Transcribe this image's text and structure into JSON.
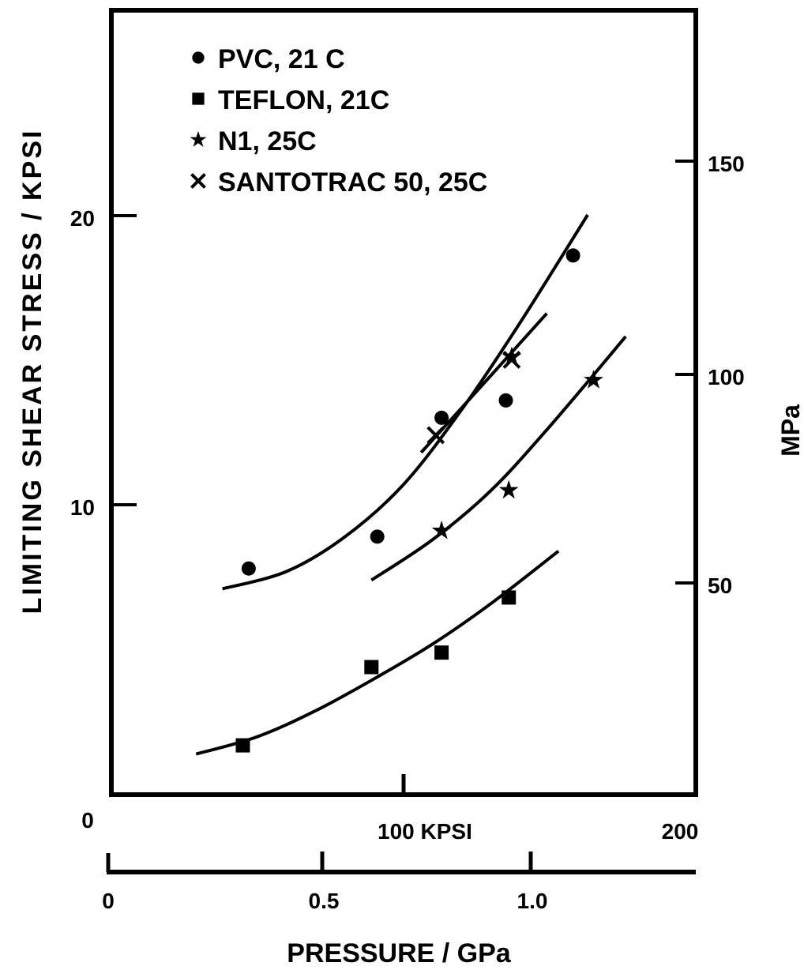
{
  "chart_data": {
    "type": "scatter",
    "title": "",
    "ylabel": "LIMITING SHEAR STRESS / KPSI",
    "ylabel_right": "MPa",
    "xlabel": "PRESSURE / GPa",
    "x_top_unit_label": "100 KPSI",
    "xlim_kpsi": [
      0,
      200
    ],
    "ylim_kpsi": [
      0,
      25
    ],
    "x_top_ticks": [
      "0",
      "200"
    ],
    "y_left_ticks": [
      "10",
      "20"
    ],
    "y_right_ticks": [
      "50",
      "100",
      "150"
    ],
    "x_gpa_ticks": [
      "0",
      "0.5",
      "1.0"
    ],
    "legend_position": "top-left",
    "series": [
      {
        "name": "PVC, 21 C",
        "marker": "circle",
        "points": [
          [
            47,
            7.8
          ],
          [
            91,
            8.9
          ],
          [
            113,
            13.0
          ],
          [
            135,
            13.6
          ],
          [
            158,
            18.6
          ]
        ],
        "curve": [
          [
            38,
            7.1
          ],
          [
            60,
            7.7
          ],
          [
            80,
            8.9
          ],
          [
            100,
            10.7
          ],
          [
            120,
            13.3
          ],
          [
            140,
            16.3
          ],
          [
            163,
            20.0
          ]
        ]
      },
      {
        "name": "TEFLON, 21C",
        "marker": "square",
        "points": [
          [
            45,
            1.7
          ],
          [
            89,
            4.4
          ],
          [
            113,
            4.9
          ],
          [
            136,
            6.8
          ]
        ],
        "curve": [
          [
            29,
            1.4
          ],
          [
            50,
            2.0
          ],
          [
            70,
            2.9
          ],
          [
            90,
            4.0
          ],
          [
            110,
            5.2
          ],
          [
            130,
            6.6
          ],
          [
            153,
            8.4
          ]
        ]
      },
      {
        "name": "N1, 25C",
        "marker": "star",
        "points": [
          [
            113,
            9.1
          ],
          [
            136,
            10.5
          ],
          [
            137,
            15.1
          ],
          [
            165,
            14.3
          ]
        ],
        "curve": [
          [
            89,
            7.4
          ],
          [
            110,
            8.8
          ],
          [
            130,
            10.5
          ],
          [
            150,
            12.7
          ],
          [
            176,
            15.8
          ]
        ]
      },
      {
        "name": "SANTOTRAC 50, 25C",
        "marker": "x",
        "points": [
          [
            111,
            12.4
          ],
          [
            137,
            15.0
          ]
        ],
        "curve": [
          [
            106,
            11.8
          ],
          [
            124,
            13.8
          ],
          [
            149,
            16.6
          ]
        ]
      }
    ]
  }
}
